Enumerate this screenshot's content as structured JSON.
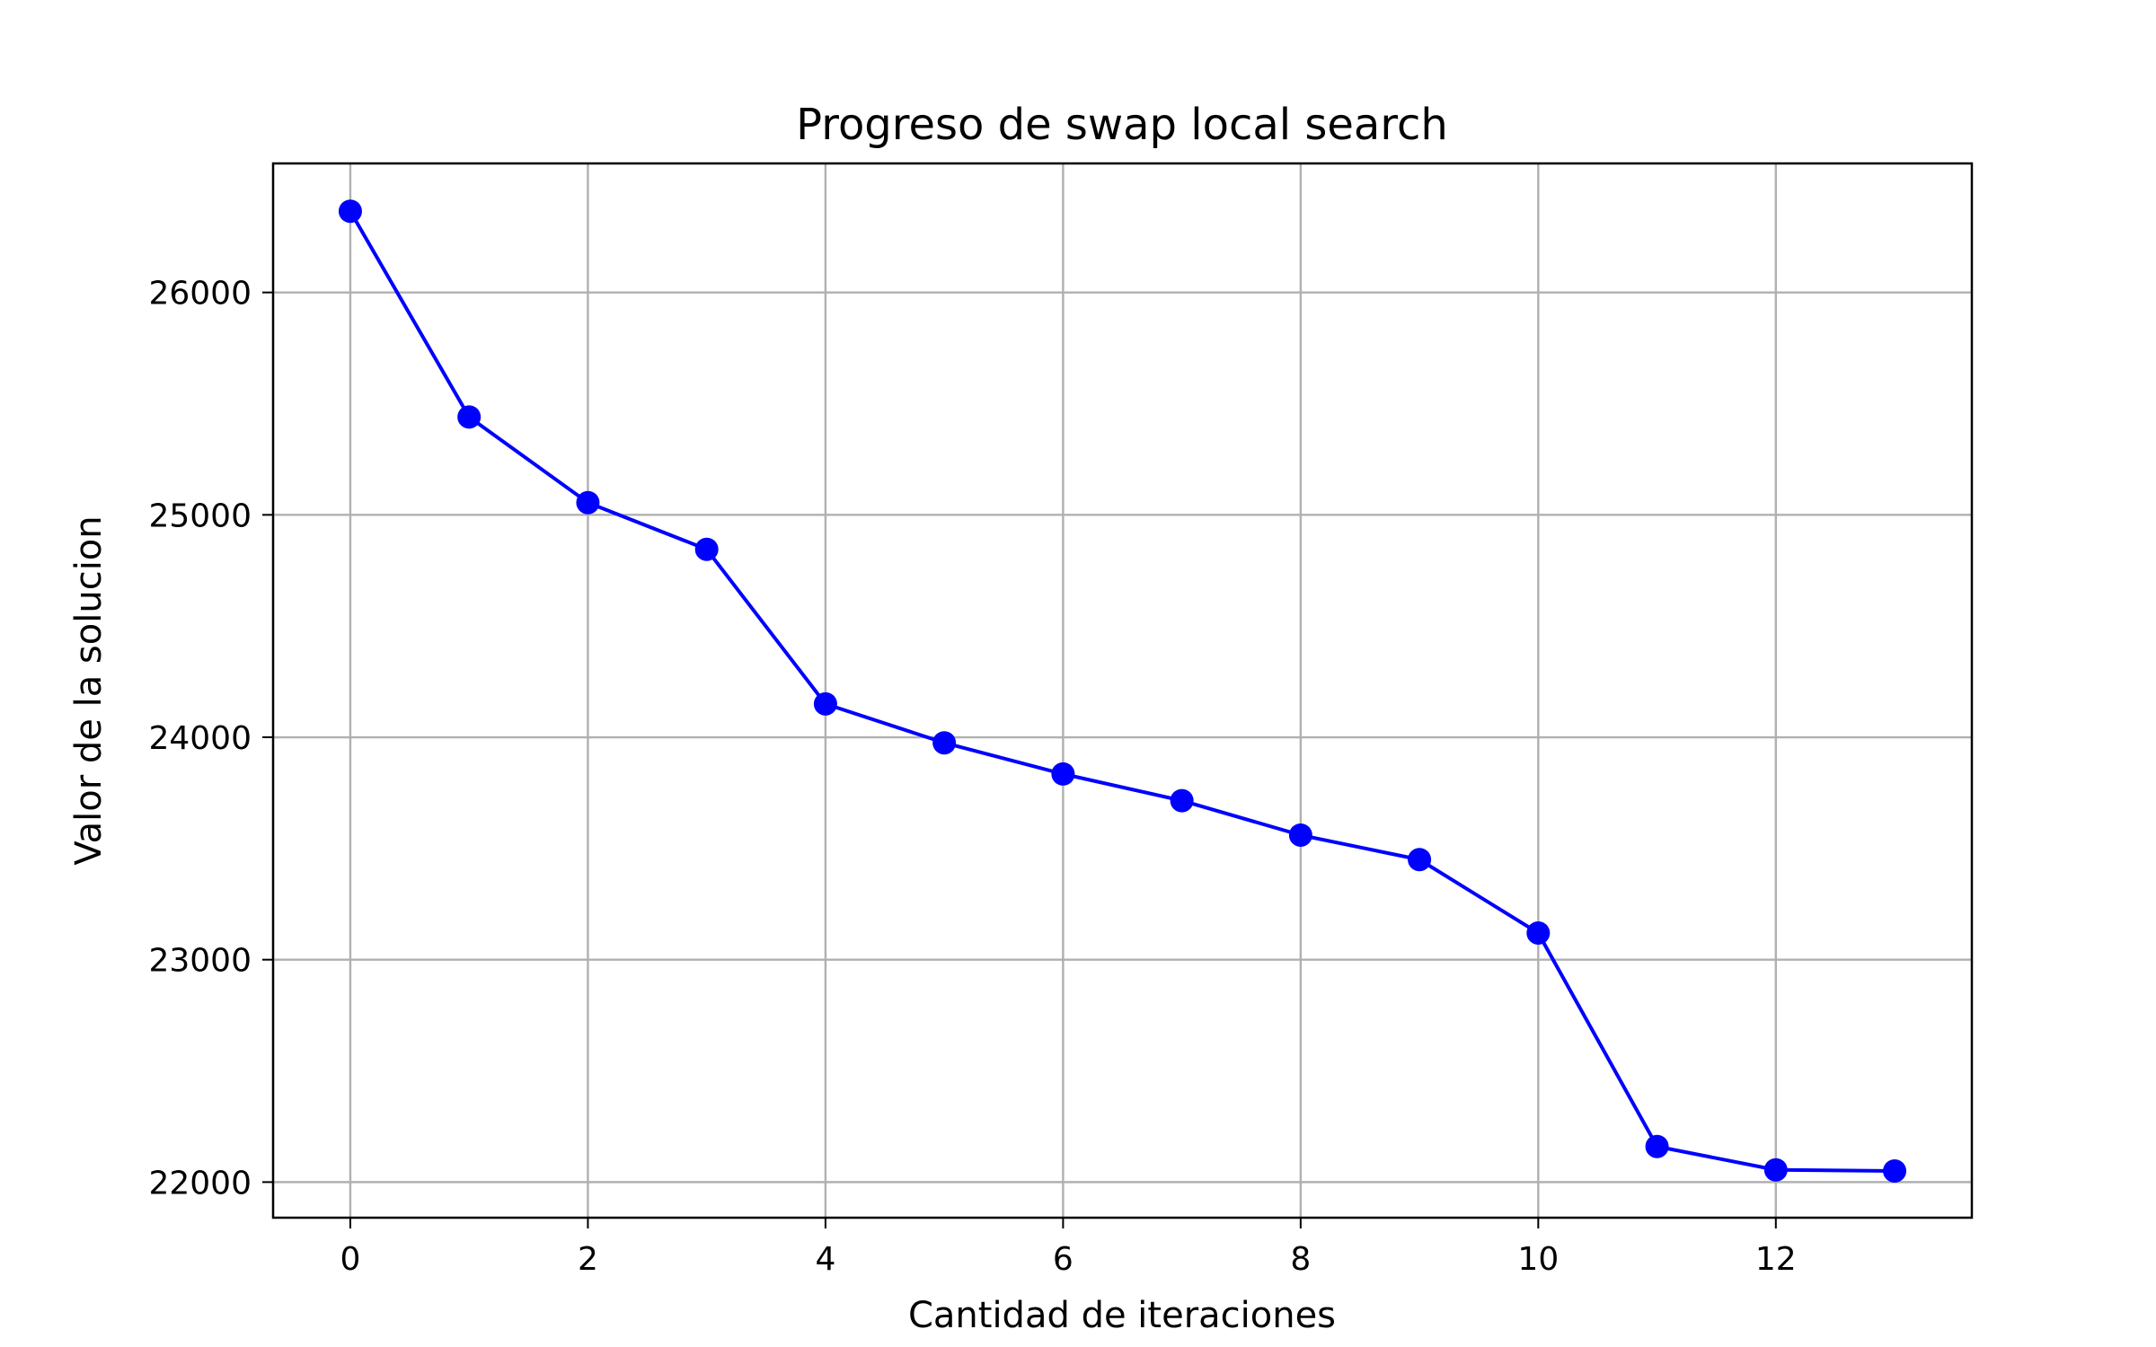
{
  "chart_data": {
    "type": "line",
    "title": "Progreso de swap local search",
    "xlabel": "Cantidad de iteraciones",
    "ylabel": "Valor de la solucion",
    "x": [
      0,
      1,
      2,
      3,
      4,
      5,
      6,
      7,
      8,
      9,
      10,
      11,
      12,
      13
    ],
    "series": [
      {
        "values": [
          26365,
          25440,
          25055,
          24845,
          24150,
          23975,
          23835,
          23715,
          23560,
          23450,
          23120,
          22160,
          22055,
          22050
        ],
        "color": "#0000ff",
        "marker": "circle"
      }
    ],
    "xlim": [
      -0.65,
      13.65
    ],
    "ylim": [
      21840,
      26580
    ],
    "xticks": [
      "0",
      "2",
      "4",
      "6",
      "8",
      "10",
      "12"
    ],
    "yticks": [
      "22000",
      "23000",
      "24000",
      "25000",
      "26000"
    ],
    "grid": true
  }
}
